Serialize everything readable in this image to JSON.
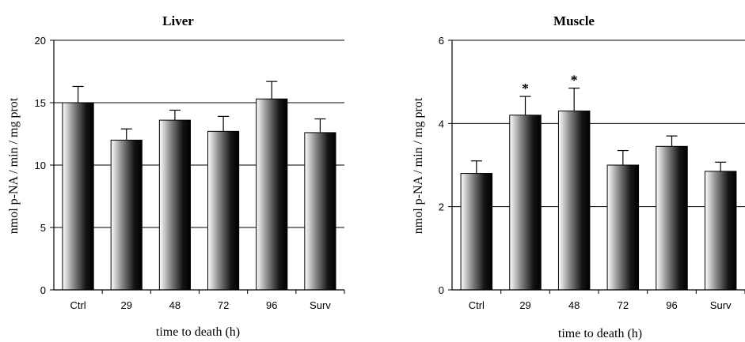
{
  "chart_data": [
    {
      "type": "bar",
      "title": "Liver",
      "xlabel": "time to death (h)",
      "ylabel": "nmol p-NA / min / mg prot",
      "categories": [
        "Ctrl",
        "29",
        "48",
        "72",
        "96",
        "Surv"
      ],
      "values": [
        15.0,
        12.0,
        13.6,
        12.7,
        15.3,
        12.6
      ],
      "errors": [
        1.3,
        0.9,
        0.8,
        1.2,
        1.4,
        1.1
      ],
      "significant": [
        false,
        false,
        false,
        false,
        false,
        false
      ],
      "ylim": [
        0,
        20
      ],
      "yticks": [
        0,
        5,
        10,
        15,
        20
      ],
      "grid": true
    },
    {
      "type": "bar",
      "title": "Muscle",
      "xlabel": "time to death (h)",
      "ylabel": "nmol p-NA / min / mg prot",
      "categories": [
        "Ctrl",
        "29",
        "48",
        "72",
        "96",
        "Surv"
      ],
      "values": [
        2.8,
        4.2,
        4.3,
        3.0,
        3.45,
        2.85
      ],
      "errors": [
        0.3,
        0.45,
        0.55,
        0.35,
        0.25,
        0.22
      ],
      "significant": [
        false,
        true,
        true,
        false,
        false,
        false
      ],
      "significance_marker": "*",
      "ylim": [
        0,
        6
      ],
      "yticks": [
        0,
        2,
        4,
        6
      ],
      "grid": true
    }
  ]
}
